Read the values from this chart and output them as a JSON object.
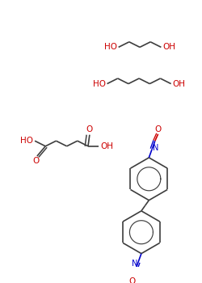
{
  "bg_color": "#ffffff",
  "bond_color": "#3d3d3d",
  "o_color": "#cc0000",
  "n_color": "#0000cc",
  "lw": 1.2,
  "figsize": [
    2.5,
    3.5
  ],
  "dpi": 100,
  "xlim": [
    0,
    250
  ],
  "ylim": [
    0,
    350
  ]
}
